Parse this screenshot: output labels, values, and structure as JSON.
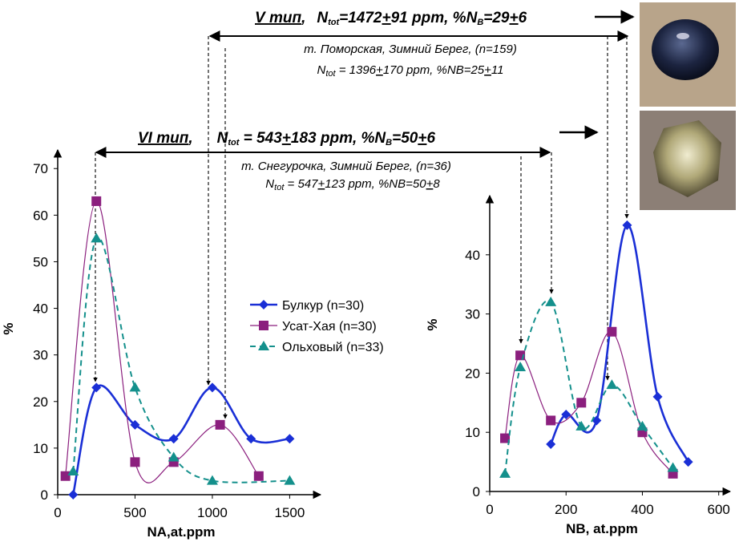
{
  "chart_data": [
    {
      "type": "line",
      "xlabel": "NA,at.ppm",
      "ylabel": "%",
      "xlim": [
        0,
        1700
      ],
      "ylim": [
        0,
        74
      ],
      "xticks": [
        0,
        500,
        1000,
        1500
      ],
      "yticks": [
        0,
        10,
        20,
        30,
        40,
        50,
        60,
        70
      ],
      "series": [
        {
          "name": "Булкур (n=30)",
          "color": "#1a2fd6",
          "marker": "diamond",
          "dash": false,
          "width": 2.6,
          "x": [
            100,
            250,
            500,
            750,
            1000,
            1250,
            1500
          ],
          "values": [
            0,
            23,
            15,
            12,
            23,
            12,
            12
          ]
        },
        {
          "name": "Усат-Хая (n=30)",
          "color": "#8b1f7e",
          "marker": "square",
          "dash": false,
          "width": 1.2,
          "x": [
            50,
            250,
            500,
            750,
            1050,
            1300
          ],
          "values": [
            4,
            63,
            7,
            7,
            15,
            4
          ]
        },
        {
          "name": "Ольховый (n=33)",
          "color": "#14908c",
          "marker": "triangle",
          "dash": true,
          "width": 2,
          "x": [
            100,
            250,
            500,
            750,
            1000,
            1500
          ],
          "values": [
            5,
            55,
            23,
            8,
            3,
            3
          ]
        }
      ]
    },
    {
      "type": "line",
      "xlabel": "NB, at.ppm",
      "ylabel": "%",
      "xlim": [
        0,
        630
      ],
      "ylim": [
        0,
        50
      ],
      "xticks": [
        0,
        200,
        400,
        600
      ],
      "yticks": [
        0,
        10,
        20,
        30,
        40
      ],
      "series": [
        {
          "color": "#1a2fd6",
          "marker": "diamond",
          "dash": false,
          "width": 2.6,
          "x": [
            160,
            200,
            280,
            360,
            440,
            520
          ],
          "values": [
            8,
            13,
            12,
            45,
            16,
            5
          ]
        },
        {
          "color": "#8b1f7e",
          "marker": "square",
          "dash": false,
          "width": 1.2,
          "x": [
            40,
            80,
            160,
            240,
            320,
            400,
            480
          ],
          "values": [
            9,
            23,
            12,
            15,
            27,
            10,
            3
          ]
        },
        {
          "color": "#14908c",
          "marker": "triangle",
          "dash": true,
          "width": 2,
          "x": [
            40,
            80,
            160,
            240,
            320,
            400,
            480
          ],
          "values": [
            3,
            21,
            32,
            11,
            18,
            11,
            4
          ]
        }
      ]
    }
  ],
  "annotations": {
    "type5": [
      "V тип",
      ",",
      "N",
      "tot",
      "=1472",
      "+",
      "91 ppm, %N",
      "B",
      "=29",
      "+",
      "6"
    ],
    "type5_locality": "т. Поморская, Зимний Берег, (n=159)",
    "type5_nitrogen": [
      "N",
      "tot",
      " = 1396",
      "+",
      "170 ppm, %NB=25",
      "+",
      "11"
    ],
    "type6": [
      "VI тип",
      ",",
      "N",
      "tot",
      " = 543",
      "+",
      "183 ppm, %N",
      "B",
      "=50",
      "+",
      "6"
    ],
    "type6_locality": "т. Снегурочка, Зимний Берег, (n=36)",
    "type6_nitrogen": [
      "N",
      "tot",
      " = 547",
      "+",
      "123 ppm, %NB=50",
      "+",
      "8"
    ]
  }
}
